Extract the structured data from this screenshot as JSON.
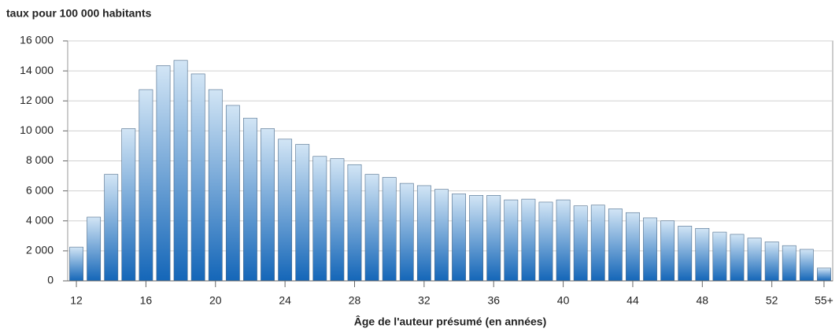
{
  "chart_data": {
    "type": "bar",
    "title": "taux pour 100 000 habitants",
    "x_label": "Âge de l'auteur présumé (en années)",
    "categories": [
      "12",
      null,
      null,
      null,
      "16",
      null,
      null,
      null,
      "20",
      null,
      null,
      null,
      "24",
      null,
      null,
      null,
      "28",
      null,
      null,
      null,
      "32",
      null,
      null,
      null,
      "36",
      null,
      null,
      null,
      "40",
      null,
      null,
      null,
      "44",
      null,
      null,
      null,
      "48",
      null,
      null,
      null,
      "52",
      null,
      null,
      "55+"
    ],
    "values": [
      2250,
      4250,
      7100,
      10150,
      12750,
      14350,
      14700,
      13800,
      12750,
      11700,
      10850,
      10150,
      9450,
      9100,
      8300,
      8150,
      7750,
      7100,
      6900,
      6500,
      6350,
      6100,
      5800,
      5700,
      5700,
      5400,
      5450,
      5250,
      5400,
      5000,
      5050,
      4800,
      4550,
      4200,
      4000,
      3650,
      3500,
      3250,
      3100,
      2850,
      2600,
      2350,
      2100,
      850
    ],
    "colors": [
      "#d2e5f5",
      "#1466b8"
    ],
    "ylim": [
      0,
      16000
    ],
    "yticks": [
      0,
      {
        "value": 2000,
        "label": "2 000"
      },
      {
        "value": 4000,
        "label": "4 000"
      },
      {
        "value": 6000,
        "label": "6 000"
      },
      {
        "value": 8000,
        "label": "8 000"
      },
      {
        "value": 10000,
        "label": "10 000"
      },
      {
        "value": 12000,
        "label": "12 000"
      },
      {
        "value": 14000,
        "label": "14 000"
      },
      {
        "value": 16000,
        "label": "16 000"
      }
    ],
    "grid": true
  }
}
